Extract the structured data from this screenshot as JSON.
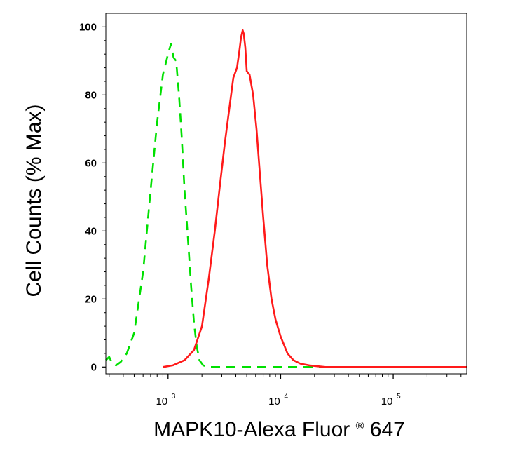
{
  "chart_data": {
    "type": "line",
    "title": "",
    "xlabel": "MAPK10-Alexa Fluor",
    "xlabel_mark": "®",
    "xlabel_tail": " 647",
    "ylabel": "Cell Counts (% Max)",
    "xscale": "log",
    "xlim": [
      280,
      450000
    ],
    "ylim": [
      -2,
      104
    ],
    "yticks": [
      0,
      20,
      40,
      60,
      80,
      100
    ],
    "ytick_labels": [
      "0",
      "20",
      "40",
      "60",
      "80",
      "100"
    ],
    "xtick_labels": [
      {
        "value": 1000,
        "base": "10",
        "exp": "3"
      },
      {
        "value": 10000,
        "base": "10",
        "exp": "4"
      },
      {
        "value": 100000,
        "base": "10",
        "exp": "5"
      }
    ],
    "grid": false,
    "legend": "none",
    "series": [
      {
        "color": "#00e000",
        "style": "dashed",
        "x": [
          280,
          300,
          320,
          345,
          380,
          430,
          500,
          600,
          700,
          800,
          900,
          1000,
          1060,
          1120,
          1180,
          1250,
          1320,
          1400,
          1500,
          1600,
          1700,
          1800,
          1900,
          2050,
          2300,
          2600,
          3000,
          4000,
          6000,
          10000,
          30000,
          100000,
          450000
        ],
        "y": [
          2,
          3,
          1,
          0.5,
          1.5,
          4,
          10,
          28,
          52,
          72,
          86,
          92,
          95,
          91,
          90,
          80,
          68,
          52,
          38,
          24,
          13,
          6,
          2,
          0.5,
          0,
          0,
          0,
          0,
          0,
          0,
          0,
          0,
          0
        ]
      },
      {
        "color": "#ff1a1a",
        "style": "solid",
        "x": [
          900,
          1100,
          1400,
          1700,
          2000,
          2300,
          2600,
          2900,
          3200,
          3500,
          3800,
          4100,
          4300,
          4450,
          4600,
          4700,
          4850,
          5000,
          5300,
          5700,
          6100,
          6500,
          7000,
          7600,
          8300,
          9000,
          10000,
          11500,
          13000,
          15000,
          18000,
          25000,
          50000,
          100000,
          200000,
          450000
        ],
        "y": [
          0,
          0.5,
          2,
          5,
          12,
          26,
          40,
          54,
          66,
          76,
          85,
          88,
          93,
          97,
          99,
          98,
          94,
          87,
          86,
          80,
          70,
          58,
          44,
          30,
          20,
          14,
          9,
          4,
          2,
          1,
          0.5,
          0,
          0,
          0,
          0,
          0
        ]
      }
    ]
  }
}
